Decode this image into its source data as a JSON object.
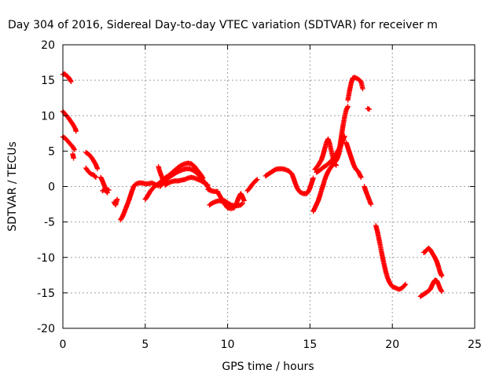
{
  "chart_data": {
    "type": "scatter",
    "title": "Day 304 of 2016, Sidereal Day-to-day VTEC variation (SDTVAR) for receiver m",
    "xlabel": "GPS time / hours",
    "ylabel": "SDTVAR / TECUs",
    "xlim": [
      0,
      25
    ],
    "ylim": [
      -20,
      20
    ],
    "xticks": [
      0,
      5,
      10,
      15,
      20,
      25
    ],
    "yticks": [
      -20,
      -15,
      -10,
      -5,
      0,
      5,
      10,
      15,
      20
    ],
    "grid": true,
    "marker": "plus",
    "color": "#ff0000",
    "segments": [
      [
        [
          0.0,
          15.8
        ],
        [
          0.1,
          15.9
        ],
        [
          0.2,
          15.7
        ],
        [
          0.3,
          15.5
        ],
        [
          0.4,
          15.2
        ],
        [
          0.5,
          14.8
        ]
      ],
      [
        [
          0.0,
          10.6
        ],
        [
          0.15,
          10.2
        ],
        [
          0.3,
          9.8
        ],
        [
          0.45,
          9.3
        ],
        [
          0.6,
          8.8
        ],
        [
          0.75,
          8.2
        ],
        [
          0.8,
          7.8
        ]
      ],
      [
        [
          0.0,
          7.0
        ],
        [
          0.15,
          6.8
        ],
        [
          0.3,
          6.4
        ],
        [
          0.45,
          6.0
        ],
        [
          0.6,
          5.6
        ],
        [
          0.7,
          5.2
        ]
      ],
      [
        [
          0.6,
          4.6
        ],
        [
          0.65,
          4.0
        ]
      ],
      [
        [
          1.4,
          4.8
        ],
        [
          1.6,
          4.5
        ],
        [
          1.8,
          3.9
        ],
        [
          2.0,
          3.1
        ],
        [
          2.1,
          2.5
        ]
      ],
      [
        [
          1.4,
          2.6
        ],
        [
          1.55,
          2.1
        ],
        [
          1.7,
          1.8
        ],
        [
          1.9,
          1.6
        ],
        [
          2.0,
          1.3
        ]
      ],
      [
        [
          2.3,
          1.3
        ],
        [
          2.4,
          0.8
        ],
        [
          2.5,
          0.2
        ],
        [
          2.6,
          -0.4
        ],
        [
          2.7,
          -0.9
        ]
      ],
      [
        [
          2.4,
          -0.6
        ],
        [
          2.6,
          -0.4
        ],
        [
          2.8,
          -0.5
        ]
      ],
      [
        [
          3.1,
          -2.2
        ],
        [
          3.2,
          -2.6
        ],
        [
          3.3,
          -1.8
        ]
      ],
      [
        [
          3.5,
          -4.7
        ],
        [
          3.6,
          -4.3
        ],
        [
          3.7,
          -3.8
        ],
        [
          3.8,
          -3.2
        ],
        [
          3.9,
          -2.6
        ],
        [
          4.0,
          -2.0
        ],
        [
          4.1,
          -1.3
        ],
        [
          4.2,
          -0.6
        ],
        [
          4.3,
          0.0
        ],
        [
          4.4,
          0.3
        ],
        [
          4.6,
          0.5
        ],
        [
          4.8,
          0.5
        ],
        [
          5.0,
          0.4
        ],
        [
          5.2,
          0.4
        ],
        [
          5.4,
          0.5
        ],
        [
          5.6,
          0.3
        ],
        [
          5.8,
          0.1
        ]
      ],
      [
        [
          5.0,
          -1.8
        ],
        [
          5.1,
          -1.5
        ],
        [
          5.2,
          -1.1
        ],
        [
          5.3,
          -0.7
        ],
        [
          5.4,
          -0.4
        ],
        [
          5.6,
          0.1
        ],
        [
          5.8,
          0.4
        ],
        [
          6.0,
          0.8
        ],
        [
          6.2,
          1.2
        ],
        [
          6.4,
          1.5
        ],
        [
          6.6,
          1.9
        ],
        [
          6.8,
          2.3
        ],
        [
          7.0,
          2.7
        ],
        [
          7.2,
          3.0
        ],
        [
          7.4,
          3.2
        ],
        [
          7.6,
          3.3
        ],
        [
          7.8,
          3.2
        ],
        [
          8.0,
          2.8
        ],
        [
          8.2,
          2.2
        ],
        [
          8.4,
          1.6
        ],
        [
          8.5,
          1.2
        ]
      ],
      [
        [
          5.8,
          2.8
        ],
        [
          5.9,
          2.0
        ],
        [
          6.0,
          1.4
        ],
        [
          6.1,
          0.8
        ]
      ],
      [
        [
          5.9,
          0.0
        ],
        [
          6.1,
          0.5
        ],
        [
          6.3,
          1.0
        ],
        [
          6.5,
          1.4
        ],
        [
          6.7,
          1.7
        ],
        [
          6.9,
          2.0
        ],
        [
          7.1,
          2.2
        ],
        [
          7.3,
          2.4
        ],
        [
          7.5,
          2.5
        ],
        [
          7.7,
          2.5
        ],
        [
          7.9,
          2.3
        ],
        [
          8.1,
          2.0
        ],
        [
          8.3,
          1.5
        ],
        [
          8.5,
          0.9
        ],
        [
          8.7,
          0.3
        ],
        [
          8.9,
          -0.4
        ]
      ],
      [
        [
          6.2,
          0.2
        ],
        [
          6.4,
          0.5
        ],
        [
          6.6,
          0.7
        ],
        [
          6.8,
          0.8
        ],
        [
          7.0,
          0.8
        ],
        [
          7.2,
          0.9
        ],
        [
          7.4,
          1.0
        ],
        [
          7.6,
          1.2
        ],
        [
          7.8,
          1.3
        ],
        [
          8.0,
          1.2
        ],
        [
          8.2,
          1.0
        ],
        [
          8.4,
          0.8
        ],
        [
          8.6,
          0.5
        ],
        [
          8.8,
          0.2
        ]
      ],
      [
        [
          8.8,
          -0.4
        ],
        [
          9.0,
          -0.6
        ],
        [
          9.2,
          -0.7
        ],
        [
          9.4,
          -0.7
        ]
      ],
      [
        [
          8.9,
          -2.6
        ],
        [
          9.1,
          -2.3
        ],
        [
          9.3,
          -2.1
        ],
        [
          9.5,
          -2.0
        ],
        [
          9.7,
          -2.1
        ],
        [
          9.9,
          -2.4
        ]
      ],
      [
        [
          9.4,
          -0.8
        ],
        [
          9.5,
          -1.2
        ],
        [
          9.6,
          -1.6
        ],
        [
          9.7,
          -2.0
        ],
        [
          9.8,
          -2.4
        ],
        [
          9.9,
          -2.7
        ],
        [
          10.0,
          -3.0
        ],
        [
          10.2,
          -3.1
        ],
        [
          10.4,
          -3.0
        ],
        [
          10.5,
          -2.6
        ],
        [
          10.6,
          -2.0
        ],
        [
          10.7,
          -1.4
        ],
        [
          10.8,
          -1.0
        ],
        [
          10.9,
          -1.4
        ],
        [
          11.0,
          -2.0
        ]
      ],
      [
        [
          9.8,
          -2.0
        ],
        [
          10.0,
          -2.3
        ],
        [
          10.2,
          -2.6
        ],
        [
          10.4,
          -2.7
        ],
        [
          10.6,
          -2.7
        ],
        [
          10.8,
          -2.6
        ],
        [
          10.9,
          -2.4
        ]
      ],
      [
        [
          11.2,
          -0.6
        ],
        [
          11.35,
          -0.2
        ],
        [
          11.5,
          0.3
        ],
        [
          11.65,
          0.7
        ],
        [
          11.8,
          1.0
        ]
      ],
      [
        [
          12.3,
          1.5
        ],
        [
          12.5,
          1.8
        ],
        [
          12.7,
          2.1
        ],
        [
          12.9,
          2.4
        ],
        [
          13.1,
          2.5
        ],
        [
          13.3,
          2.5
        ],
        [
          13.5,
          2.4
        ],
        [
          13.7,
          2.2
        ],
        [
          13.9,
          1.8
        ],
        [
          14.0,
          1.2
        ],
        [
          14.1,
          0.5
        ],
        [
          14.2,
          -0.1
        ],
        [
          14.3,
          -0.5
        ],
        [
          14.4,
          -0.8
        ],
        [
          14.6,
          -1.0
        ],
        [
          14.8,
          -1.0
        ],
        [
          14.9,
          -0.7
        ],
        [
          15.0,
          -0.2
        ],
        [
          15.1,
          0.5
        ],
        [
          15.2,
          1.2
        ]
      ],
      [
        [
          15.2,
          -3.5
        ],
        [
          15.3,
          -3.0
        ],
        [
          15.4,
          -2.5
        ],
        [
          15.5,
          -2.0
        ],
        [
          15.6,
          -1.3
        ],
        [
          15.7,
          -0.5
        ],
        [
          15.8,
          0.2
        ],
        [
          15.9,
          1.0
        ],
        [
          16.0,
          1.6
        ],
        [
          16.1,
          2.1
        ],
        [
          16.2,
          2.5
        ],
        [
          16.3,
          2.8
        ],
        [
          16.4,
          3.1
        ],
        [
          16.5,
          3.4
        ],
        [
          16.6,
          3.7
        ],
        [
          16.7,
          4.2
        ],
        [
          16.8,
          5.0
        ],
        [
          16.9,
          6.0
        ],
        [
          17.0,
          7.0
        ]
      ],
      [
        [
          15.3,
          2.4
        ],
        [
          15.5,
          3.0
        ],
        [
          15.7,
          3.8
        ],
        [
          15.8,
          4.5
        ],
        [
          15.9,
          5.4
        ],
        [
          16.0,
          6.2
        ],
        [
          16.1,
          6.7
        ],
        [
          16.2,
          6.0
        ],
        [
          16.3,
          5.0
        ],
        [
          16.4,
          4.0
        ],
        [
          16.5,
          3.2
        ],
        [
          16.6,
          3.0
        ]
      ],
      [
        [
          15.4,
          2.0
        ],
        [
          15.6,
          2.3
        ],
        [
          15.8,
          2.7
        ],
        [
          16.0,
          3.0
        ],
        [
          16.2,
          3.4
        ],
        [
          16.4,
          3.9
        ],
        [
          16.6,
          4.6
        ],
        [
          16.8,
          5.5
        ],
        [
          17.0,
          6.5
        ],
        [
          17.1,
          7.1
        ]
      ],
      [
        [
          16.8,
          5.5
        ],
        [
          16.9,
          7.0
        ],
        [
          17.0,
          8.5
        ],
        [
          17.1,
          9.8
        ],
        [
          17.2,
          10.8
        ],
        [
          17.3,
          11.3
        ]
      ],
      [
        [
          17.2,
          6.2
        ],
        [
          17.3,
          5.5
        ],
        [
          17.4,
          4.8
        ],
        [
          17.5,
          4.1
        ],
        [
          17.6,
          3.4
        ],
        [
          17.7,
          2.8
        ],
        [
          17.8,
          2.4
        ],
        [
          17.9,
          2.2
        ],
        [
          18.0,
          1.8
        ],
        [
          18.1,
          1.3
        ]
      ],
      [
        [
          17.3,
          12.2
        ],
        [
          17.4,
          13.5
        ],
        [
          17.5,
          14.6
        ],
        [
          17.6,
          15.3
        ],
        [
          17.7,
          15.4
        ],
        [
          17.9,
          15.2
        ],
        [
          18.1,
          14.8
        ],
        [
          18.2,
          13.8
        ]
      ],
      [
        [
          18.3,
          0.0
        ],
        [
          18.4,
          -0.7
        ],
        [
          18.5,
          -1.3
        ],
        [
          18.6,
          -1.9
        ],
        [
          18.7,
          -2.5
        ]
      ],
      [
        [
          18.5,
          11.0
        ],
        [
          18.6,
          10.9
        ]
      ],
      [
        [
          19.0,
          -5.5
        ],
        [
          19.1,
          -6.4
        ],
        [
          19.2,
          -7.5
        ],
        [
          19.3,
          -8.7
        ],
        [
          19.4,
          -9.9
        ],
        [
          19.5,
          -11.0
        ],
        [
          19.6,
          -12.0
        ],
        [
          19.7,
          -12.8
        ],
        [
          19.8,
          -13.4
        ],
        [
          19.9,
          -13.8
        ],
        [
          20.0,
          -14.1
        ],
        [
          20.2,
          -14.3
        ],
        [
          20.4,
          -14.5
        ],
        [
          20.6,
          -14.3
        ],
        [
          20.8,
          -13.8
        ]
      ],
      [
        [
          21.7,
          -15.5
        ],
        [
          21.9,
          -15.2
        ],
        [
          22.1,
          -14.9
        ],
        [
          22.3,
          -14.5
        ],
        [
          22.4,
          -14.0
        ],
        [
          22.5,
          -13.5
        ],
        [
          22.6,
          -13.2
        ],
        [
          22.7,
          -13.3
        ],
        [
          22.8,
          -13.8
        ],
        [
          22.9,
          -14.4
        ],
        [
          23.0,
          -14.8
        ]
      ],
      [
        [
          21.9,
          -9.3
        ],
        [
          22.0,
          -9.2
        ],
        [
          22.1,
          -8.9
        ],
        [
          22.2,
          -8.7
        ],
        [
          22.3,
          -8.9
        ],
        [
          22.4,
          -9.3
        ],
        [
          22.5,
          -9.7
        ],
        [
          22.6,
          -10.1
        ],
        [
          22.7,
          -10.6
        ],
        [
          22.8,
          -11.3
        ],
        [
          22.9,
          -12.1
        ],
        [
          23.0,
          -12.6
        ]
      ]
    ]
  }
}
